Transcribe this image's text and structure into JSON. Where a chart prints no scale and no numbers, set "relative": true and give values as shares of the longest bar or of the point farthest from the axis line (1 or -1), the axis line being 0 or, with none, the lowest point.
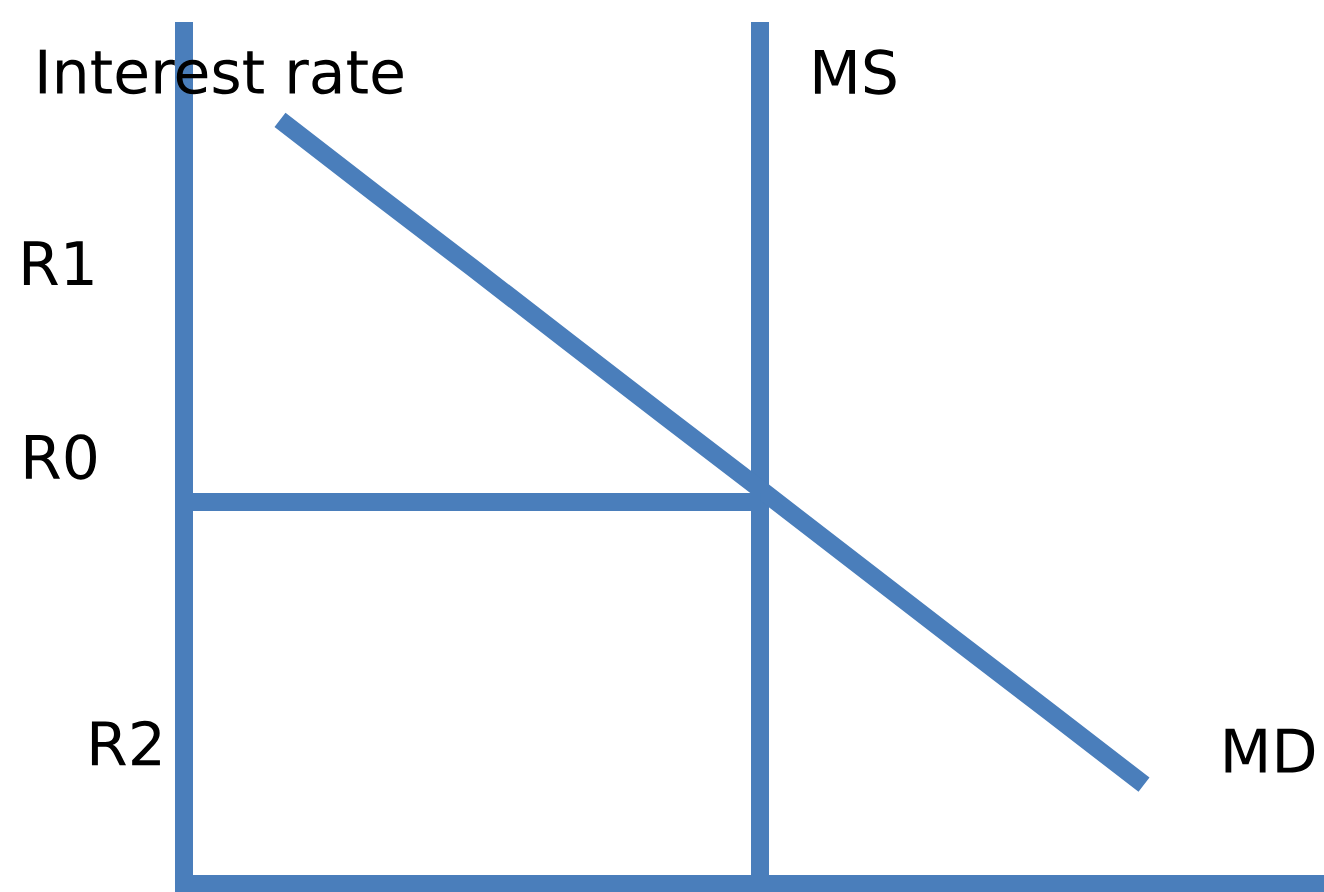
{
  "chart_data": {
    "type": "line",
    "relative": true,
    "ylabel": "Interest rate",
    "categories": [
      null,
      null,
      null,
      null,
      null,
      null,
      null,
      null,
      null,
      null,
      null
    ],
    "series": [
      {
        "name": "MD",
        "color": "#4a7ebb",
        "values": [
          null,
          1,
          0.903,
          0.807,
          0.71,
          0.613,
          0.517,
          0.42,
          0.323,
          0.227,
          0.13
        ]
      },
      {
        "color": "#4a7ebb",
        "values": [
          0.5,
          0.5,
          0.5,
          0.5,
          0.5,
          0.5,
          0.5,
          null,
          null,
          null,
          null
        ]
      }
    ],
    "ref_lines": [
      {
        "axis": "y",
        "value": 0,
        "color": "#4a7ebb"
      }
    ],
    "annotations": [
      "MS",
      "R1",
      "R0",
      "R2"
    ]
  }
}
